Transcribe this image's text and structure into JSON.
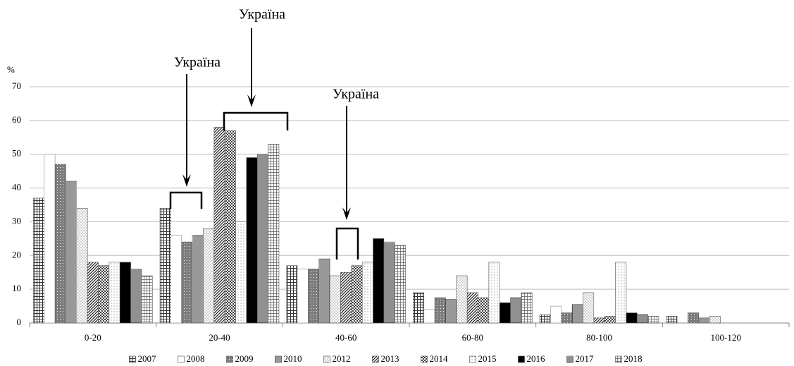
{
  "chart_data": {
    "type": "bar",
    "ylabel": "%",
    "categories": [
      "0-20",
      "20-40",
      "40-60",
      "60-80",
      "80-100",
      "100-120"
    ],
    "ylim": [
      0,
      70
    ],
    "yticks": [
      0,
      10,
      20,
      30,
      40,
      50,
      60,
      70
    ],
    "grid": true,
    "legend": "bottom",
    "annotations": [
      "Україна",
      "Україна",
      "Україна"
    ],
    "series": [
      {
        "name": "2007",
        "color": "#333333",
        "pattern": "grid",
        "values": [
          37,
          34,
          17,
          9,
          2.5,
          2
        ]
      },
      {
        "name": "2008",
        "color": "#888888",
        "pattern": "plain",
        "values": [
          50,
          26,
          16,
          4,
          5,
          0
        ]
      },
      {
        "name": "2009",
        "color": "#444444",
        "pattern": "dense-dots",
        "values": [
          47,
          24,
          16,
          7.5,
          3,
          3
        ]
      },
      {
        "name": "2010",
        "color": "#333333",
        "pattern": "vertical",
        "values": [
          42,
          26,
          19,
          7,
          5.5,
          1.5
        ]
      },
      {
        "name": "2012",
        "color": "#999999",
        "pattern": "dots",
        "values": [
          34,
          28,
          14,
          14,
          9,
          2
        ]
      },
      {
        "name": "2013",
        "color": "#222222",
        "pattern": "diagonal",
        "values": [
          18,
          58,
          15,
          9,
          1.5,
          0
        ]
      },
      {
        "name": "2014",
        "color": "#444444",
        "pattern": "checker",
        "values": [
          17,
          57,
          17,
          7.5,
          2,
          0
        ]
      },
      {
        "name": "2015",
        "color": "#777777",
        "pattern": "sparse-dots",
        "values": [
          18,
          30,
          18,
          18,
          18,
          0
        ]
      },
      {
        "name": "2016",
        "color": "#000000",
        "pattern": "solid",
        "values": [
          18,
          49,
          25,
          6,
          3,
          0
        ]
      },
      {
        "name": "2017",
        "color": "#222222",
        "pattern": "horizontal",
        "values": [
          16,
          50,
          24,
          7.5,
          2.5,
          0
        ]
      },
      {
        "name": "2018",
        "color": "#555555",
        "pattern": "fine-grid",
        "values": [
          14,
          53,
          23,
          9,
          2,
          0
        ]
      }
    ]
  }
}
